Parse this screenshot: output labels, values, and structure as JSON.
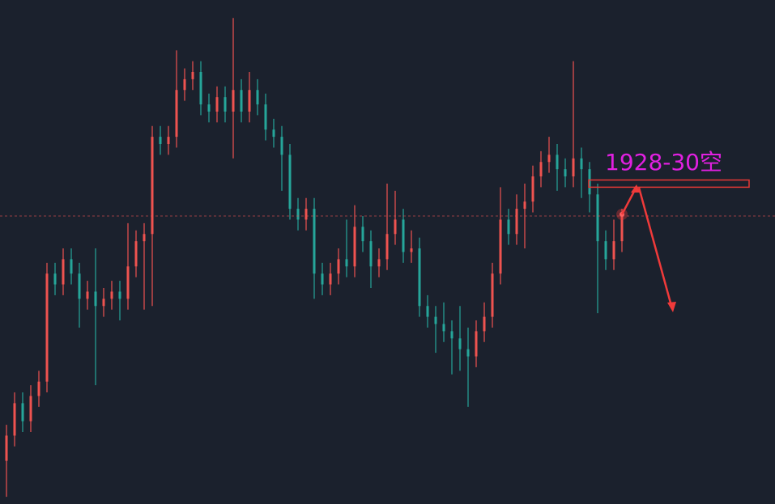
{
  "chart_data": {
    "type": "candlestick",
    "up_color": "#ef5350",
    "down_color": "#26a69a",
    "ylim": [
      1840,
      1980
    ],
    "ohlc": [
      [
        1852,
        1862,
        1842,
        1859
      ],
      [
        1859,
        1871,
        1856,
        1868
      ],
      [
        1868,
        1871,
        1860,
        1863
      ],
      [
        1863,
        1873,
        1860,
        1870
      ],
      [
        1870,
        1877,
        1867,
        1874
      ],
      [
        1874,
        1907,
        1871,
        1904
      ],
      [
        1904,
        1907,
        1898,
        1901
      ],
      [
        1901,
        1911,
        1898,
        1908
      ],
      [
        1908,
        1911,
        1901,
        1904
      ],
      [
        1904,
        1907,
        1889,
        1897
      ],
      [
        1897,
        1902,
        1894,
        1899
      ],
      [
        1899,
        1911,
        1873,
        1895
      ],
      [
        1895,
        1900,
        1892,
        1897
      ],
      [
        1897,
        1902,
        1894,
        1899
      ],
      [
        1899,
        1902,
        1891,
        1897
      ],
      [
        1897,
        1918,
        1894,
        1906
      ],
      [
        1906,
        1916,
        1903,
        1913
      ],
      [
        1913,
        1918,
        1894,
        1915
      ],
      [
        1915,
        1945,
        1895,
        1942
      ],
      [
        1942,
        1945,
        1937,
        1940
      ],
      [
        1940,
        1945,
        1937,
        1942
      ],
      [
        1942,
        1966,
        1939,
        1955
      ],
      [
        1955,
        1961,
        1952,
        1958
      ],
      [
        1958,
        1963,
        1955,
        1960
      ],
      [
        1960,
        1963,
        1948,
        1951
      ],
      [
        1951,
        1954,
        1946,
        1949
      ],
      [
        1949,
        1956,
        1946,
        1953
      ],
      [
        1953,
        1956,
        1946,
        1949
      ],
      [
        1949,
        1975,
        1936,
        1955
      ],
      [
        1955,
        1958,
        1946,
        1949
      ],
      [
        1949,
        1960,
        1946,
        1955
      ],
      [
        1955,
        1958,
        1948,
        1951
      ],
      [
        1951,
        1954,
        1941,
        1944
      ],
      [
        1944,
        1947,
        1939,
        1942
      ],
      [
        1942,
        1945,
        1927,
        1937
      ],
      [
        1937,
        1940,
        1919,
        1922
      ],
      [
        1922,
        1925,
        1916,
        1919
      ],
      [
        1919,
        1925,
        1916,
        1922
      ],
      [
        1922,
        1925,
        1897,
        1904
      ],
      [
        1904,
        1907,
        1898,
        1901
      ],
      [
        1901,
        1907,
        1898,
        1904
      ],
      [
        1904,
        1911,
        1901,
        1908
      ],
      [
        1908,
        1919,
        1903,
        1906
      ],
      [
        1906,
        1923,
        1903,
        1917
      ],
      [
        1917,
        1920,
        1910,
        1913
      ],
      [
        1913,
        1916,
        1900,
        1906
      ],
      [
        1906,
        1911,
        1903,
        1908
      ],
      [
        1908,
        1929,
        1905,
        1915
      ],
      [
        1915,
        1927,
        1912,
        1919
      ],
      [
        1919,
        1922,
        1907,
        1910
      ],
      [
        1910,
        1916,
        1907,
        1911
      ],
      [
        1911,
        1914,
        1892,
        1895
      ],
      [
        1895,
        1898,
        1889,
        1892
      ],
      [
        1892,
        1895,
        1882,
        1890
      ],
      [
        1890,
        1896,
        1885,
        1888
      ],
      [
        1888,
        1891,
        1876,
        1886
      ],
      [
        1886,
        1895,
        1877,
        1883
      ],
      [
        1883,
        1889,
        1867,
        1881
      ],
      [
        1881,
        1891,
        1878,
        1888
      ],
      [
        1888,
        1896,
        1885,
        1892
      ],
      [
        1892,
        1907,
        1889,
        1904
      ],
      [
        1904,
        1928,
        1901,
        1919
      ],
      [
        1919,
        1922,
        1912,
        1915
      ],
      [
        1915,
        1926,
        1912,
        1922
      ],
      [
        1922,
        1929,
        1911,
        1924
      ],
      [
        1924,
        1934,
        1921,
        1931
      ],
      [
        1931,
        1938,
        1928,
        1935
      ],
      [
        1935,
        1942,
        1932,
        1937
      ],
      [
        1937,
        1940,
        1927,
        1933
      ],
      [
        1933,
        1936,
        1928,
        1931
      ],
      [
        1931,
        1963,
        1928,
        1936
      ],
      [
        1936,
        1939,
        1925,
        1933
      ],
      [
        1933,
        1935,
        1921,
        1926
      ],
      [
        1926,
        1929,
        1893,
        1913
      ],
      [
        1913,
        1916,
        1905,
        1908
      ],
      [
        1908,
        1919,
        1905,
        1913
      ],
      [
        1913,
        1922,
        1910,
        1920
      ]
    ],
    "annotation": "1928-30空",
    "annotation_color": "#e020e0",
    "zone": [
      1928,
      1930
    ],
    "zone_color": "#e53935"
  }
}
